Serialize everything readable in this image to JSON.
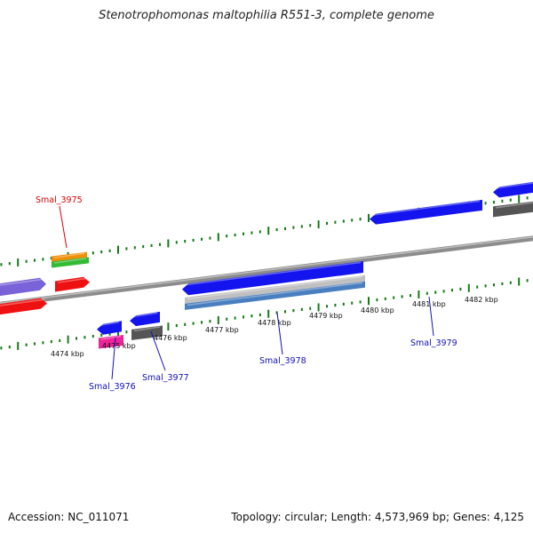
{
  "title": "Stenotrophomonas maltophilia R551-3, complete genome",
  "footer": {
    "accession": "Accession: NC_011071",
    "summary": "Topology: circular; Length: 4,573,969 bp; Genes: 4,125"
  },
  "colors": {
    "backbone": "#8c8c8c",
    "tick": "#157a15",
    "blue": "#1414ee",
    "red": "#ee1111",
    "gray": "#555555",
    "purple": "#7a62d8",
    "orange": "#f0900a",
    "green": "#33bb33",
    "pink": "#ee2299",
    "steel": "#4a7fbf",
    "silver": "#c0c0c0",
    "label_red": "#dd0000",
    "label_blue": "#1010bb"
  },
  "scale_labels": [
    "4474 kbp",
    "4475 kbp",
    "4476 kbp",
    "4477 kbp",
    "4478 kbp",
    "4479 kbp",
    "4480 kbp",
    "4481 kbp",
    "4482 kbp"
  ],
  "gene_labels": [
    {
      "name": "Smal_3975",
      "color": "label_red"
    },
    {
      "name": "Smal_3976",
      "color": "label_blue"
    },
    {
      "name": "Smal_3977",
      "color": "label_blue"
    },
    {
      "name": "Smal_3978",
      "color": "label_blue"
    },
    {
      "name": "Smal_3979",
      "color": "label_blue"
    }
  ]
}
